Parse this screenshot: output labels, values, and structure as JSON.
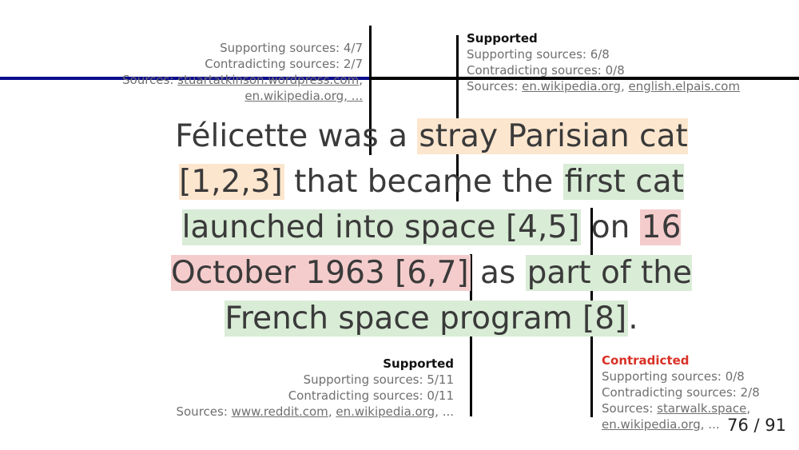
{
  "colors": {
    "supported_bg": "#d9ecd6",
    "unverified_bg": "#fde6ce",
    "contradicted_bg": "#f5cccc",
    "contradicted_text": "#d93025",
    "top_rule_left": "#0a0a8c",
    "top_rule_right": "#000000"
  },
  "claim": {
    "seg1": "Félicette was a ",
    "seg2": "stray Parisian cat [1,2,3]",
    "seg3": " that became the ",
    "seg4": "first cat launched into space [4,5]",
    "seg5": " on ",
    "seg6": "16 October 1963 [6,7]",
    "seg7": " as ",
    "seg8": "part of the French space program [8]",
    "seg9": "."
  },
  "annotations": {
    "a1": {
      "supporting": "Supporting sources: 4/7",
      "contradicting": "Contradicting sources: 2/7",
      "sources_label": "Sources: ",
      "source1": "stuartatkinson.wordpress.com",
      "sep": ",",
      "source2": "en.wikipedia.org, ..."
    },
    "a2": {
      "status": "Supported",
      "supporting": "Supporting sources: 6/8",
      "contradicting": "Contradicting sources: 0/8",
      "sources_label": "Sources: ",
      "source1": "en.wikipedia.org",
      "sep": ", ",
      "source2": "english.elpais.com"
    },
    "a3": {
      "status": "Supported",
      "supporting": "Supporting sources: 5/11",
      "contradicting": "Contradicting sources: 0/11",
      "sources_label": "Sources: ",
      "source1": "www.reddit.com",
      "sep": ", ",
      "source2": "en.wikipedia.org",
      "ellipsis": ", ..."
    },
    "a4": {
      "status": "Contradicted",
      "supporting": "Supporting sources: 0/8",
      "contradicting": "Contradicting sources: 2/8",
      "sources_label": "Sources: ",
      "source1": "starwalk.space",
      "sep": ",",
      "source2": "en.wikipedia.org",
      "ellipsis": ", ..."
    }
  },
  "page": {
    "current": "76",
    "separator": " / ",
    "total": "91"
  }
}
